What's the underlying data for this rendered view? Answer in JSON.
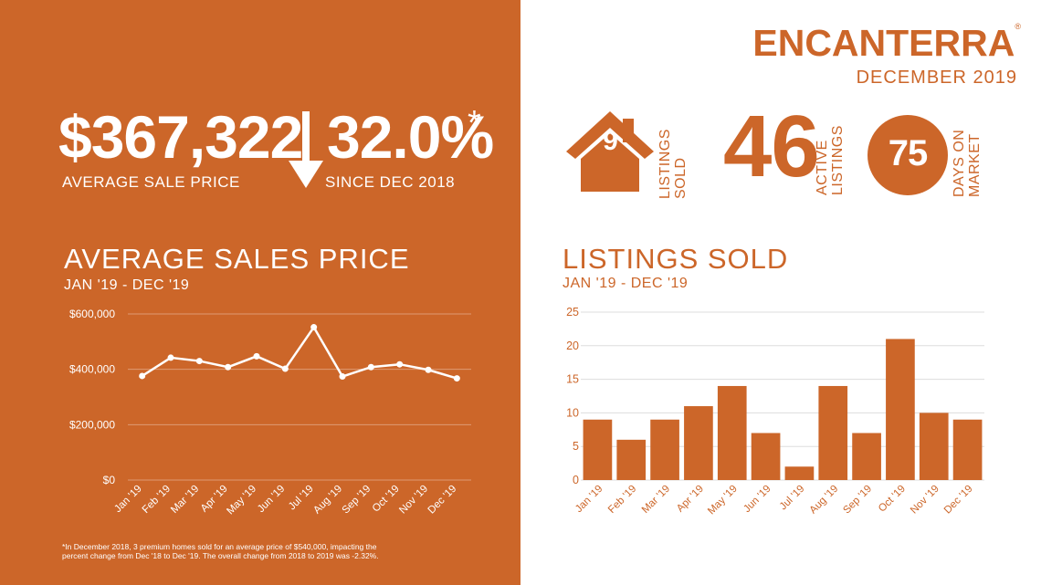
{
  "left": {
    "avg_price_value": "$367,322",
    "avg_price_label": "AVERAGE  SALE PRICE",
    "change_value": "32.0%",
    "change_asterisk": "*",
    "change_label": "SINCE DEC 2018",
    "chart_title": "AVERAGE SALES PRICE",
    "chart_subtitle": "JAN '19 - DEC '19",
    "footnote_line1": "*In December 2018, 3 premium homes sold for an average price of $540,000, impacting the",
    "footnote_line2": "percent change from Dec '18 to Dec '19. The overall change from 2018 to 2019 was -2.32%."
  },
  "right": {
    "brand": "ENCANTERRA",
    "brand_mark": "®",
    "date": "DECEMBER 2019",
    "listings_sold_value": "9",
    "listings_sold_label_1": "LISTINGS",
    "listings_sold_label_2": "SOLD",
    "active_value": "46",
    "active_label_1": "ACTIVE",
    "active_label_2": "LISTINGS",
    "dom_value": "75",
    "dom_label_1": "DAYS ON",
    "dom_label_2": "MARKET",
    "chart_title": "LISTINGS SOLD",
    "chart_subtitle": "JAN '19 - DEC '19"
  },
  "colors": {
    "accent": "#cc6629",
    "white": "#ffffff"
  },
  "chart_data": [
    {
      "type": "line",
      "title": "AVERAGE SALES PRICE",
      "subtitle": "JAN '19 - DEC '19",
      "categories": [
        "Jan '19",
        "Feb '19",
        "Mar '19",
        "Apr '19",
        "May '19",
        "Jun '19",
        "Jul '19",
        "Aug '19",
        "Sep '19",
        "Oct '19",
        "Nov '19",
        "Dec '19"
      ],
      "values": [
        376000,
        442000,
        430000,
        408000,
        447000,
        402000,
        552000,
        374000,
        408000,
        418000,
        398000,
        367322
      ],
      "ylim": [
        0,
        600000
      ],
      "yticks": [
        0,
        200000,
        400000,
        600000
      ],
      "ytick_labels": [
        "$0",
        "$200,000",
        "$400,000",
        "$600,000"
      ],
      "grid": true
    },
    {
      "type": "bar",
      "title": "LISTINGS SOLD",
      "subtitle": "JAN '19 - DEC '19",
      "categories": [
        "Jan '19",
        "Feb '19",
        "Mar '19",
        "Apr '19",
        "May '19",
        "Jun '19",
        "Jul '19",
        "Aug '19",
        "Sep '19",
        "Oct '19",
        "Nov '19",
        "Dec '19"
      ],
      "values": [
        9,
        6,
        9,
        11,
        14,
        7,
        2,
        14,
        7,
        21,
        10,
        9
      ],
      "ylim": [
        0,
        25
      ],
      "yticks": [
        0,
        5,
        10,
        15,
        20,
        25
      ],
      "ytick_labels": [
        "0",
        "5",
        "10",
        "15",
        "20",
        "25"
      ],
      "grid": true
    }
  ]
}
